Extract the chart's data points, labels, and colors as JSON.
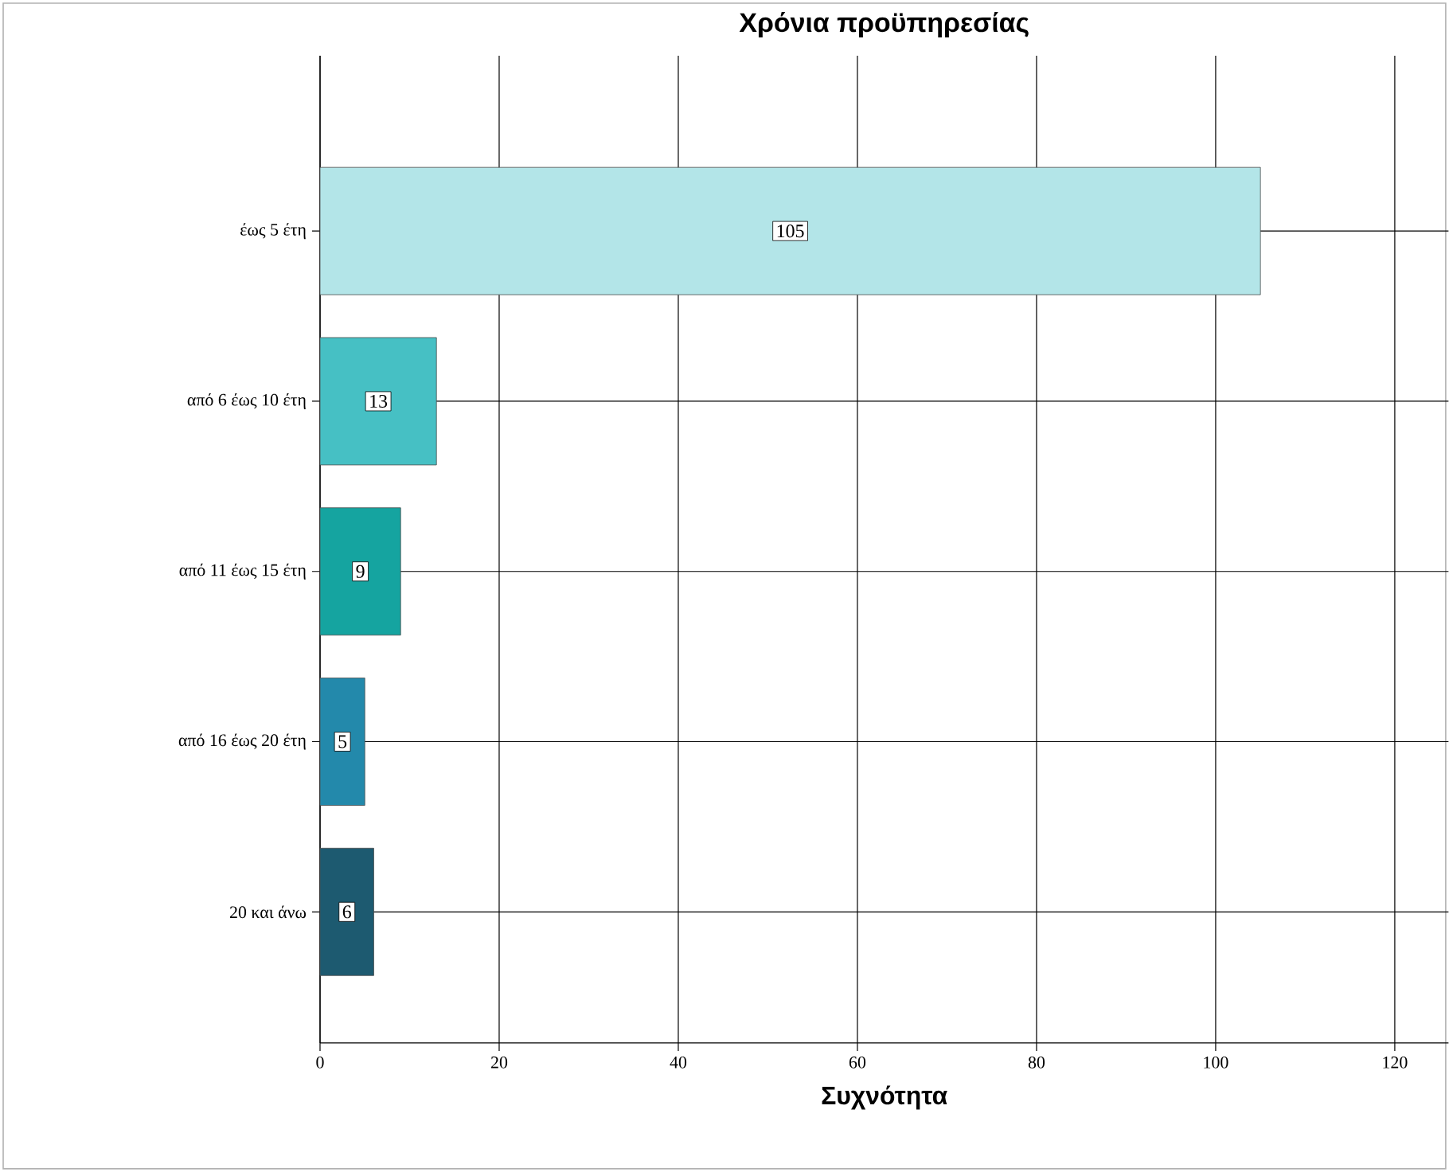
{
  "chart_data": {
    "type": "bar",
    "orientation": "horizontal",
    "title": "Χρόνια προϋπηρεσίας",
    "xlabel": "Συχνότητα",
    "categories": [
      "έως 5 έτη",
      "από 6 έως 10 έτη",
      "από 11 έως 15 έτη",
      "από 16 έως 20 έτη",
      "20 και άνω"
    ],
    "values": [
      105,
      13,
      9,
      5,
      6
    ],
    "colors": [
      "#b3e5e8",
      "#46c0c4",
      "#15a4a0",
      "#2389ab",
      "#1d5a70"
    ],
    "xlim": [
      0,
      126
    ],
    "xticks": [
      0,
      20,
      40,
      60,
      80,
      100,
      120
    ],
    "grid": true,
    "data_labels": true
  }
}
